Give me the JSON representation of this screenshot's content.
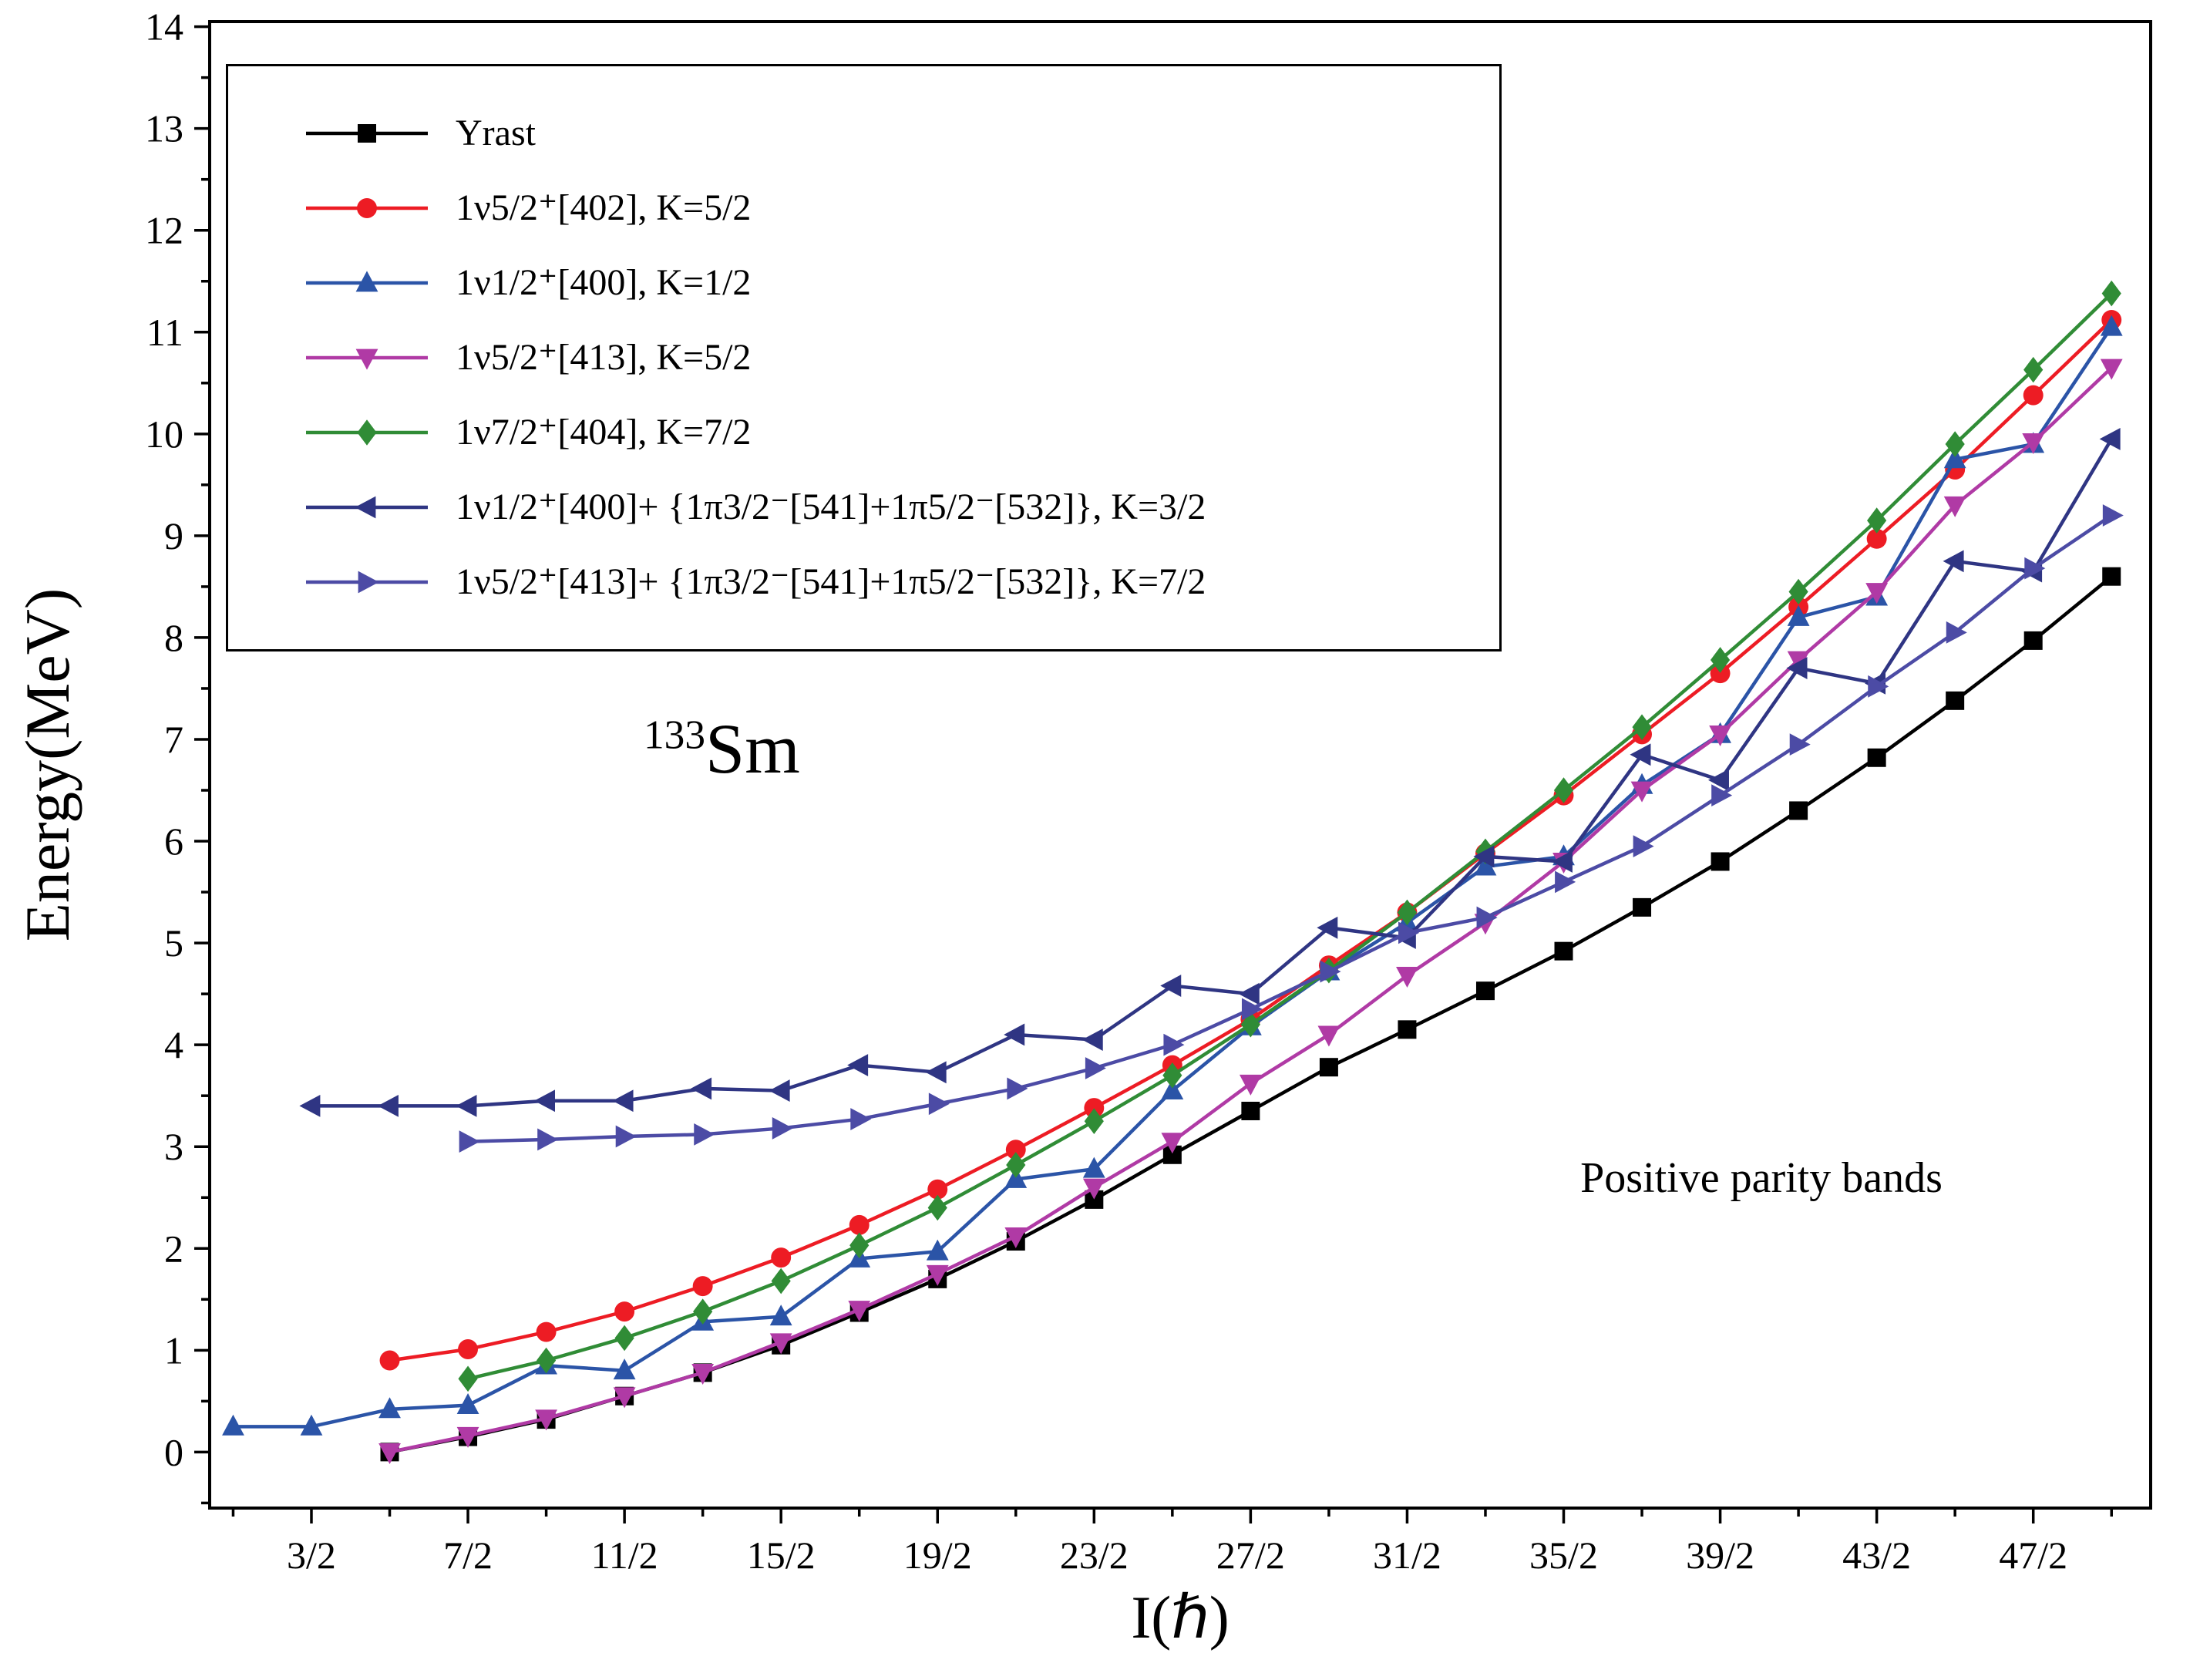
{
  "chart_data": {
    "type": "line",
    "title": "",
    "xlabel": "I(ℏ)",
    "ylabel": "Energy(MeV)",
    "xlim": [
      0.2,
      25.0
    ],
    "ylim": [
      -0.55,
      14.05
    ],
    "grid": false,
    "legend_position": "top-left",
    "annotations": {
      "isotope_mass": "133",
      "isotope_symbol": "Sm",
      "note": "Positive parity bands"
    },
    "xticks": {
      "values": [
        1.5,
        3.5,
        5.5,
        7.5,
        9.5,
        11.5,
        13.5,
        15.5,
        17.5,
        19.5,
        21.5,
        23.5
      ],
      "labels": [
        "3/2",
        "7/2",
        "11/2",
        "15/2",
        "19/2",
        "23/2",
        "27/2",
        "31/2",
        "35/2",
        "39/2",
        "43/2",
        "47/2"
      ]
    },
    "yticks": {
      "values": [
        0,
        1,
        2,
        3,
        4,
        5,
        6,
        7,
        8,
        9,
        10,
        11,
        12,
        13,
        14
      ],
      "labels": [
        "0",
        "1",
        "2",
        "3",
        "4",
        "5",
        "6",
        "7",
        "8",
        "9",
        "10",
        "11",
        "12",
        "13",
        "14"
      ]
    },
    "series": [
      {
        "label": "Yrast",
        "color": "#000000",
        "marker": "square",
        "x": [
          2.5,
          3.5,
          4.5,
          5.5,
          6.5,
          7.5,
          8.5,
          9.5,
          10.5,
          11.5,
          12.5,
          13.5,
          14.5,
          15.5,
          16.5,
          17.5,
          18.5,
          19.5,
          20.5,
          21.5,
          22.5,
          23.5,
          24.5
        ],
        "y": [
          0.0,
          0.15,
          0.32,
          0.55,
          0.78,
          1.05,
          1.37,
          1.7,
          2.07,
          2.48,
          2.92,
          3.35,
          3.78,
          4.15,
          4.53,
          4.92,
          5.35,
          5.8,
          6.3,
          6.82,
          7.38,
          7.97,
          8.6
        ]
      },
      {
        "label": "1ν5/2⁺[402], K=5/2",
        "color": "#ed1c24",
        "marker": "circle",
        "x": [
          2.5,
          3.5,
          4.5,
          5.5,
          6.5,
          7.5,
          8.5,
          9.5,
          10.5,
          11.5,
          12.5,
          13.5,
          14.5,
          15.5,
          16.5,
          17.5,
          18.5,
          19.5,
          20.5,
          21.5,
          22.5,
          23.5,
          24.5
        ],
        "y": [
          0.9,
          1.01,
          1.18,
          1.38,
          1.63,
          1.91,
          2.23,
          2.58,
          2.97,
          3.38,
          3.8,
          4.25,
          4.78,
          5.3,
          5.88,
          6.45,
          7.05,
          7.65,
          8.3,
          8.97,
          9.65,
          10.38,
          11.12
        ]
      },
      {
        "label": "1ν1/2⁺[400], K=1/2",
        "color": "#2b54a7",
        "marker": "triangle-up",
        "x": [
          0.5,
          1.5,
          2.5,
          3.5,
          4.5,
          5.5,
          6.5,
          7.5,
          8.5,
          9.5,
          10.5,
          11.5,
          12.5,
          13.5,
          14.5,
          15.5,
          16.5,
          17.5,
          18.5,
          19.5,
          20.5,
          21.5,
          22.5,
          23.5,
          24.5
        ],
        "y": [
          0.25,
          0.25,
          0.42,
          0.46,
          0.85,
          0.8,
          1.28,
          1.33,
          1.9,
          1.97,
          2.68,
          2.78,
          3.55,
          4.18,
          4.72,
          5.2,
          5.75,
          5.85,
          6.55,
          7.05,
          8.2,
          8.4,
          9.75,
          9.9,
          11.05
        ]
      },
      {
        "label": "1ν5/2⁺[413], K=5/2",
        "color": "#b03aa5",
        "marker": "triangle-down",
        "x": [
          2.5,
          3.5,
          4.5,
          5.5,
          6.5,
          7.5,
          8.5,
          9.5,
          10.5,
          11.5,
          12.5,
          13.5,
          14.5,
          15.5,
          16.5,
          17.5,
          18.5,
          19.5,
          20.5,
          21.5,
          22.5,
          23.5,
          24.5
        ],
        "y": [
          0.0,
          0.16,
          0.33,
          0.55,
          0.78,
          1.08,
          1.4,
          1.75,
          2.12,
          2.6,
          3.05,
          3.62,
          4.1,
          4.68,
          5.2,
          5.8,
          6.5,
          7.05,
          7.78,
          8.45,
          9.3,
          9.92,
          10.65
        ]
      },
      {
        "label": "1ν7/2⁺[404], K=7/2",
        "color": "#308c36",
        "marker": "diamond",
        "x": [
          3.5,
          4.5,
          5.5,
          6.5,
          7.5,
          8.5,
          9.5,
          10.5,
          11.5,
          12.5,
          13.5,
          14.5,
          15.5,
          16.5,
          17.5,
          18.5,
          19.5,
          20.5,
          21.5,
          22.5,
          23.5,
          24.5
        ],
        "y": [
          0.72,
          0.9,
          1.12,
          1.38,
          1.68,
          2.03,
          2.4,
          2.82,
          3.25,
          3.7,
          4.2,
          4.73,
          5.3,
          5.9,
          6.5,
          7.12,
          7.78,
          8.45,
          9.15,
          9.9,
          10.63,
          11.38
        ]
      },
      {
        "label": "1ν1/2⁺[400]+ {1π3/2⁻[541]+1π5/2⁻[532]}, K=3/2",
        "color": "#2f3583",
        "marker": "triangle-left",
        "x": [
          1.5,
          2.5,
          3.5,
          4.5,
          5.5,
          6.5,
          7.5,
          8.5,
          9.5,
          10.5,
          11.5,
          12.5,
          13.5,
          14.5,
          15.5,
          16.5,
          17.5,
          18.5,
          19.5,
          20.5,
          21.5,
          22.5,
          23.5,
          24.5
        ],
        "y": [
          3.4,
          3.4,
          3.4,
          3.45,
          3.45,
          3.57,
          3.55,
          3.8,
          3.73,
          4.1,
          4.05,
          4.58,
          4.5,
          5.15,
          5.05,
          5.85,
          5.8,
          6.85,
          6.6,
          7.7,
          7.55,
          8.75,
          8.65,
          9.95
        ]
      },
      {
        "label": "1ν5/2⁺[413]+ {1π3/2⁻[541]+1π5/2⁻[532]}, K=7/2",
        "color": "#4c4ba5",
        "marker": "triangle-right",
        "x": [
          3.5,
          4.5,
          5.5,
          6.5,
          7.5,
          8.5,
          9.5,
          10.5,
          11.5,
          12.5,
          13.5,
          14.5,
          15.5,
          16.5,
          17.5,
          18.5,
          19.5,
          20.5,
          21.5,
          22.5,
          23.5,
          24.5
        ],
        "y": [
          3.05,
          3.07,
          3.1,
          3.12,
          3.18,
          3.27,
          3.42,
          3.57,
          3.77,
          4.0,
          4.35,
          4.72,
          5.1,
          5.25,
          5.6,
          5.95,
          6.45,
          6.95,
          7.52,
          8.05,
          8.68,
          9.2
        ]
      }
    ]
  }
}
